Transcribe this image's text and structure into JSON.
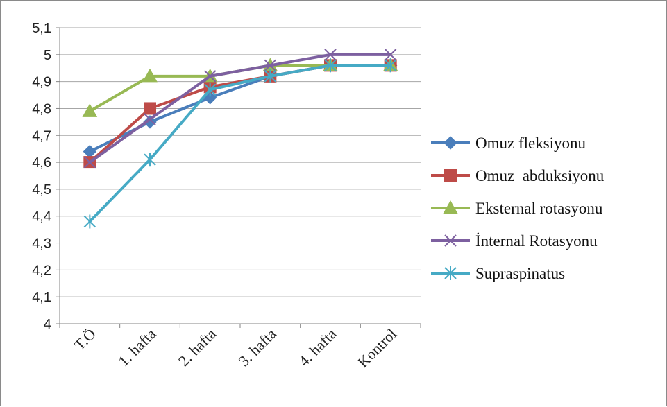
{
  "colors": {
    "omuz_fleksiyonu": "#4A7EBB",
    "omuz_abduksiyonu": "#BE4B48",
    "eksternal_rotasyonu": "#98B954",
    "internal_rotasyonu": "#7D60A0",
    "supraspinatus": "#46AAC5",
    "gridline": "#A6A6A6",
    "axis": "#868686"
  },
  "chart_data": {
    "type": "line",
    "categories": [
      "T.Ö",
      "1. hafta",
      "2. hafta",
      "3. hafta",
      "4. hafta",
      "Kontrol"
    ],
    "ylim": [
      4,
      5.1
    ],
    "yticks": [
      "4",
      "4,1",
      "4,2",
      "4,3",
      "4,4",
      "4,5",
      "4,6",
      "4,7",
      "4,8",
      "4,9",
      "5",
      "5,1"
    ],
    "grid": true,
    "legend_position": "right",
    "series": [
      {
        "name": "Omuz fleksiyonu",
        "marker": "diamond",
        "color": "#4A7EBB",
        "values": [
          4.64,
          4.75,
          4.84,
          4.92,
          4.96,
          4.96
        ]
      },
      {
        "name": "Omuz  abduksiyonu",
        "marker": "square",
        "color": "#BE4B48",
        "values": [
          4.6,
          4.8,
          4.88,
          4.92,
          4.96,
          4.96
        ]
      },
      {
        "name": "Eksternal rotasyonu",
        "marker": "triangle",
        "color": "#98B954",
        "values": [
          4.79,
          4.92,
          4.92,
          4.96,
          4.96,
          4.96
        ]
      },
      {
        "name": "İnternal Rotasyonu",
        "marker": "x",
        "color": "#7D60A0",
        "values": [
          4.6,
          4.76,
          4.92,
          4.96,
          5.0,
          5.0
        ]
      },
      {
        "name": "Supraspinatus",
        "marker": "star",
        "color": "#46AAC5",
        "values": [
          4.38,
          4.61,
          4.87,
          4.92,
          4.96,
          4.96
        ]
      }
    ]
  }
}
